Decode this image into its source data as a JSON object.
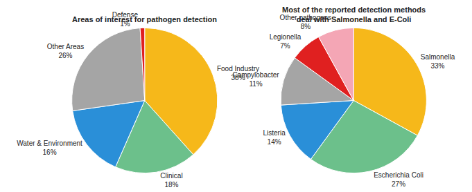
{
  "chart_data": [
    {
      "type": "pie",
      "title": "Areas of interest for pathogen detection",
      "categories": [
        "Food Industry",
        "Clinical",
        "Water & Environment",
        "Other Areas",
        "Defense"
      ],
      "values": [
        38,
        18,
        16,
        26,
        1
      ],
      "value_labels": [
        "38%",
        "18%",
        "16%",
        "26%",
        "1%"
      ],
      "colors": [
        "#f6b81a",
        "#6cc08b",
        "#2a8fd8",
        "#a5a5a5",
        "#e02020"
      ],
      "data_labels": true
    },
    {
      "type": "pie",
      "title": "Most of the reported detection methods\ndeal with Salmonella and E-Coli",
      "categories": [
        "Salmonella",
        "Escherichia Coli",
        "Listeria",
        "Campylobacter",
        "Legionella",
        "Other pathogens"
      ],
      "values": [
        33,
        27,
        14,
        11,
        7,
        8
      ],
      "value_labels": [
        "33%",
        "27%",
        "14%",
        "11%",
        "7%",
        "8%"
      ],
      "colors": [
        "#f6b81a",
        "#6cc08b",
        "#2a8fd8",
        "#a5a5a5",
        "#e02020",
        "#f4a6b5"
      ],
      "data_labels": true
    }
  ]
}
